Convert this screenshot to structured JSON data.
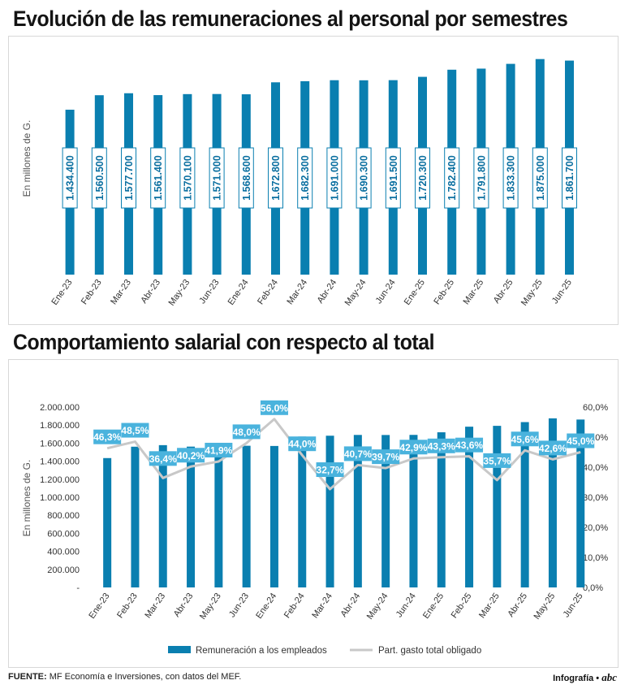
{
  "chart_titles": {
    "top": "Evolución de las remuneraciones al personal por semestres",
    "bottom": "Comportamiento salarial con respecto al total"
  },
  "chart_data": [
    {
      "type": "bar",
      "title": "Evolución de las remuneraciones al personal por semestres",
      "ylabel": "En millones de G.",
      "categories": [
        "Ene-23",
        "Feb-23",
        "Mar-23",
        "Abr-23",
        "May-23",
        "Jun-23",
        "Ene-24",
        "Feb-24",
        "Mar-24",
        "Abr-24",
        "May-24",
        "Jun-24",
        "Ene-25",
        "Feb-25",
        "Mar-25",
        "Abr-25",
        "May-25",
        "Jun-25"
      ],
      "values": [
        1434400,
        1560500,
        1577700,
        1561400,
        1570100,
        1571000,
        1568600,
        1672800,
        1682300,
        1691000,
        1690300,
        1691500,
        1720300,
        1782400,
        1791800,
        1833300,
        1875000,
        1861700
      ],
      "value_labels": [
        "1.434.400",
        "1.560.500",
        "1.577.700",
        "1.561.400",
        "1.570.100",
        "1.571.000",
        "1.568.600",
        "1.672.800",
        "1.682.300",
        "1.691.000",
        "1.690.300",
        "1.691.500",
        "1.720.300",
        "1.782.400",
        "1.791.800",
        "1.833.300",
        "1.875.000",
        "1.861.700"
      ],
      "bar_color": "#0a7fb0"
    },
    {
      "type": "bar+line",
      "title": "Comportamiento salarial con respecto al total",
      "ylabel": "En millones de G.",
      "categories": [
        "Ene-23",
        "Feb-23",
        "Mar-23",
        "Abr-23",
        "May-23",
        "Jun-23",
        "Ene-24",
        "Feb-24",
        "Mar-24",
        "Abr-24",
        "May-24",
        "Jun-24",
        "Ene-25",
        "Feb-25",
        "Mar-25",
        "Abr-25",
        "May-25",
        "Jun-25"
      ],
      "ylim_left": [
        0,
        2000000
      ],
      "left_ticks": [
        "-",
        "200.000",
        "400.000",
        "600.000",
        "800.000",
        "1.000.000",
        "1.200.000",
        "1.400.000",
        "1.600.000",
        "1.800.000",
        "2.000.000"
      ],
      "ylim_right": [
        0,
        60
      ],
      "right_ticks": [
        "0,0%",
        "10,0%",
        "20,0%",
        "30,0%",
        "40,0%",
        "50,0%",
        "60,0%"
      ],
      "series": [
        {
          "name": "Remuneración a los empleados",
          "type": "bar",
          "axis": "left",
          "color": "#0a7fb0",
          "values": [
            1434400,
            1560500,
            1577700,
            1561400,
            1570100,
            1571000,
            1568600,
            1672800,
            1682300,
            1691000,
            1690300,
            1691500,
            1720300,
            1782400,
            1791800,
            1833300,
            1875000,
            1861700
          ]
        },
        {
          "name": "Part. gasto total obligado",
          "type": "line",
          "axis": "right",
          "color": "#c8c8c8",
          "values": [
            46.3,
            48.5,
            36.4,
            40.2,
            41.9,
            48.0,
            56.0,
            44.0,
            32.7,
            40.7,
            39.7,
            42.9,
            43.3,
            43.6,
            35.7,
            45.6,
            42.6,
            45.0
          ],
          "labels": [
            "46,3%",
            "48,5%",
            "36,4%",
            "40,2%",
            "41,9%",
            "48,0%",
            "56,0%",
            "44,0%",
            "32,7%",
            "40,7%",
            "39,7%",
            "42,9%",
            "43,3%",
            "43,6%",
            "35,7%",
            "45,6%",
            "42,6%",
            "45,0%"
          ]
        }
      ]
    }
  ],
  "footer": {
    "source_label": "FUENTE:",
    "source_text": " MF Economía e Inversiones, con datos del MEF.",
    "credit": "Infografía •",
    "logo": "abc"
  }
}
